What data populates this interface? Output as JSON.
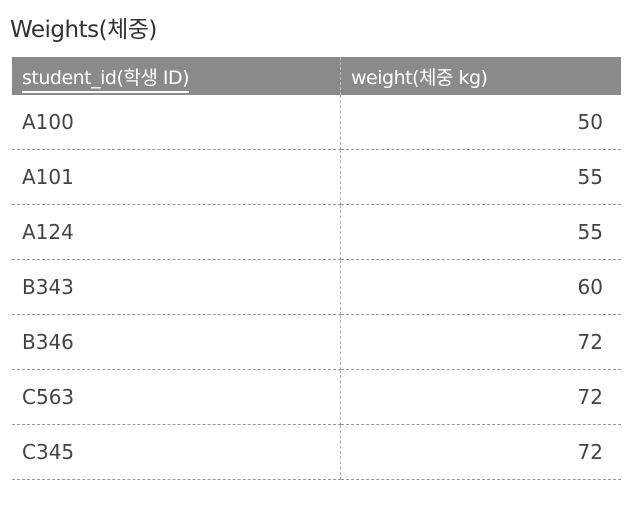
{
  "title": "Weights(체중)",
  "headers": [
    "student_id(학생 ID)",
    "weight(체중 kg)"
  ],
  "rows": [
    [
      "A100",
      "50"
    ],
    [
      "A101",
      "55"
    ],
    [
      "A124",
      "55"
    ],
    [
      "B343",
      "60"
    ],
    [
      "B346",
      "72"
    ],
    [
      "C563",
      "72"
    ],
    [
      "C345",
      "72"
    ]
  ],
  "colors": {
    "header_bg": "#8a8a8a"
  }
}
